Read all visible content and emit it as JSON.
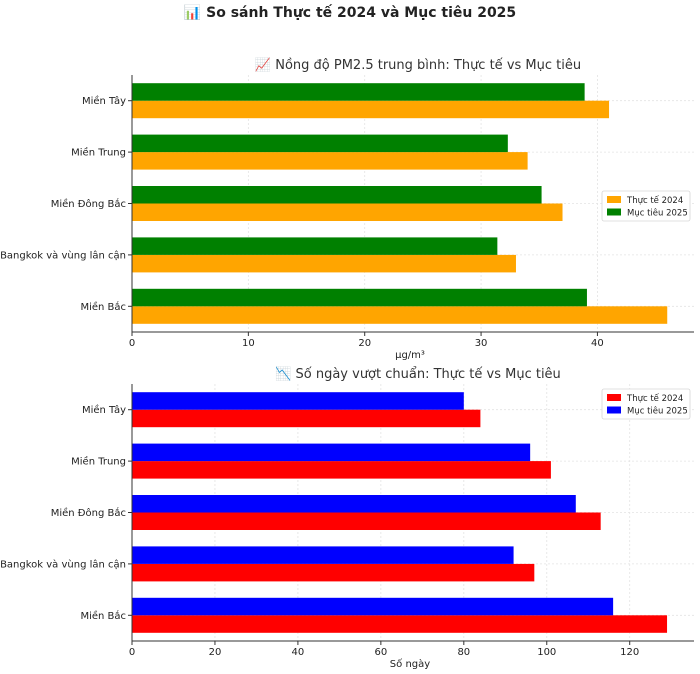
{
  "figure": {
    "suptitle": "📊 So sánh Thực tế 2024 và Mục tiêu 2025"
  },
  "chart_data": [
    {
      "type": "bar",
      "orientation": "horizontal",
      "title": "📈 Nồng độ PM2.5 trung bình: Thực tế vs Mục tiêu",
      "xlabel": "µg/m³",
      "ylabel": "",
      "categories": [
        "Miền Bắc",
        "Bangkok và vùng lân cận",
        "Miền Đông Bắc",
        "Miền Trung",
        "Miền Tây"
      ],
      "series": [
        {
          "name": "Thực tế 2024",
          "color": "#FFA500",
          "values": [
            46,
            33,
            37,
            34,
            41
          ]
        },
        {
          "name": "Mục tiêu 2025",
          "color": "#008000",
          "values": [
            39.1,
            31.4,
            35.2,
            32.3,
            38.9
          ]
        }
      ],
      "xlim": [
        0,
        48.3
      ],
      "xticks": [
        0,
        10,
        20,
        30,
        40
      ],
      "grid": true,
      "legend_position": "center-right"
    },
    {
      "type": "bar",
      "orientation": "horizontal",
      "title": "📉 Số ngày vượt chuẩn: Thực tế vs Mục tiêu",
      "xlabel": "Số ngày",
      "ylabel": "",
      "categories": [
        "Miền Bắc",
        "Bangkok và vùng lân cận",
        "Miền Đông Bắc",
        "Miền Trung",
        "Miền Tây"
      ],
      "series": [
        {
          "name": "Thực tế 2024",
          "color": "#FF0000",
          "values": [
            129,
            97,
            113,
            101,
            84
          ]
        },
        {
          "name": "Mục tiêu 2025",
          "color": "#0000FF",
          "values": [
            116,
            92,
            107,
            96,
            80
          ]
        }
      ],
      "xlim": [
        0,
        135.5
      ],
      "xticks": [
        0,
        20,
        40,
        60,
        80,
        100,
        120
      ],
      "grid": true,
      "legend_position": "top-right"
    }
  ]
}
